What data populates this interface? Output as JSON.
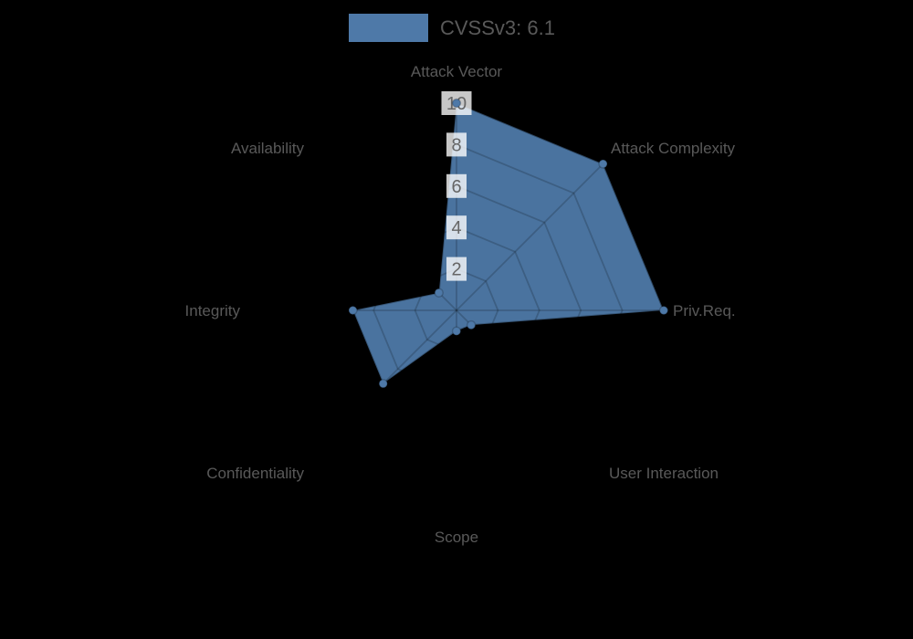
{
  "page": {
    "background_color": "#000000"
  },
  "legend": {
    "label": "CVSSv3: 6.1",
    "swatch_color": "#4e79a8"
  },
  "chart_data": {
    "type": "radar",
    "title": "CVSSv3: 6.1",
    "categories": [
      "Attack Vector",
      "Attack Complexity",
      "Priv.Req.",
      "User Interaction",
      "Scope",
      "Confidentiality",
      "Integrity",
      "Availability"
    ],
    "series": [
      {
        "name": "CVSSv3: 6.1",
        "values": [
          10,
          10,
          10,
          1,
          1,
          5,
          5,
          1.2
        ]
      }
    ],
    "scale": {
      "min": 0,
      "max": 10,
      "tick_labels": [
        "2",
        "4",
        "6",
        "8",
        "10"
      ]
    },
    "grid": "spiderweb-on",
    "legend_position": "top",
    "colors": {
      "fill": "#4e79a8",
      "fill_opacity": 0.95,
      "polygon_stroke": "rgba(0,0,0,0.25)",
      "grid_line": "rgba(0,0,0,0.18)",
      "point_fill": "#4e79a8",
      "point_stroke": "rgba(0,0,0,0.2)",
      "axis_label_color": "#595959",
      "tick_color": "#666666",
      "tick_backdrop": "rgba(255,255,255,0.78)"
    }
  }
}
